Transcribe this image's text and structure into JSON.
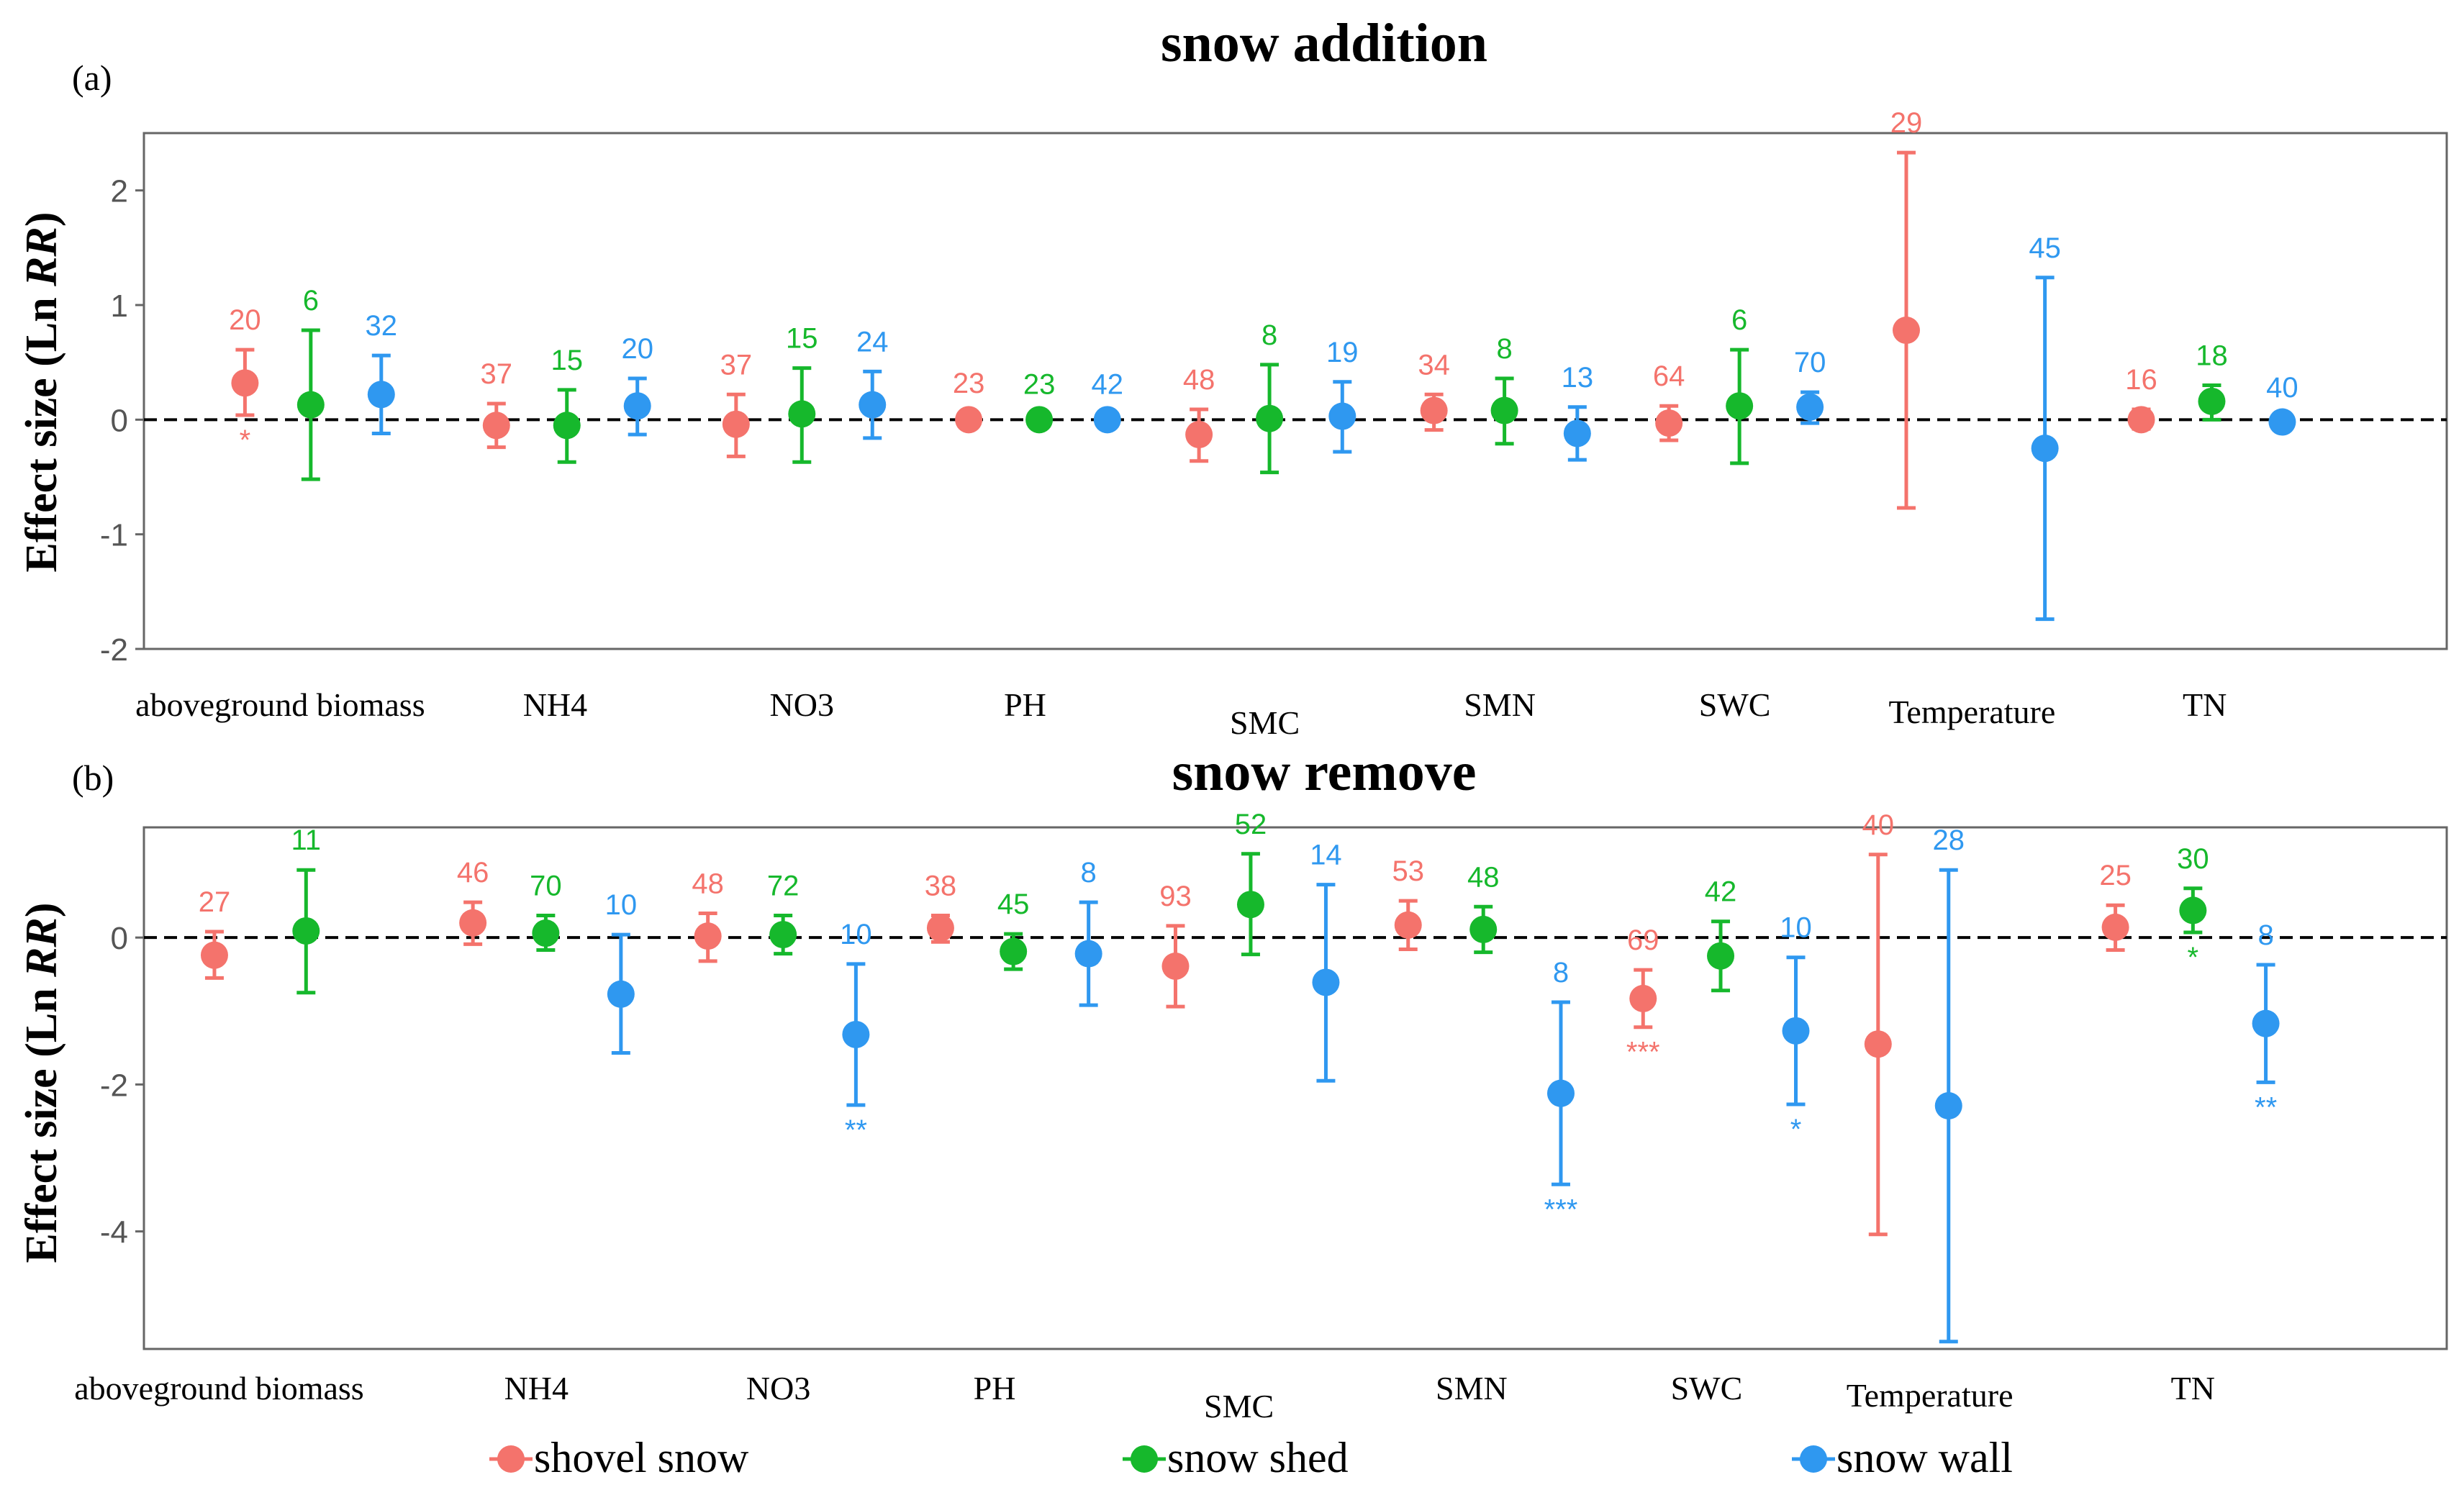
{
  "colors": {
    "shovel": "#f4736c",
    "shed": "#16b82c",
    "wall": "#2f98f0",
    "zero_line": "#000000",
    "axis": "#555555"
  },
  "legend": [
    {
      "key": "shovel",
      "label": "shovel snow"
    },
    {
      "key": "shed",
      "label": "snow shed"
    },
    {
      "key": "wall",
      "label": "snow wall"
    }
  ],
  "chart_data": [
    {
      "type": "scatter",
      "panel_label": "(a)",
      "title": "snow addition",
      "ylabel": "Effect size (Ln RR)",
      "ylim": [
        -2,
        2.5
      ],
      "yticks": [
        -2,
        -1,
        0,
        1,
        2
      ],
      "categories": [
        "aboveground biomass",
        "NH4",
        "NO3",
        "PH",
        "SMC",
        "SMN",
        "SWC",
        "Temperature",
        "TN"
      ],
      "series": [
        {
          "name": "shovel snow",
          "key": "shovel",
          "points": [
            {
              "cat": 0,
              "x": 0.73,
              "y": 0.32,
              "lo": 0.04,
              "hi": 0.61,
              "n": "20",
              "sig": "*"
            },
            {
              "cat": 1,
              "x": 1.8,
              "y": -0.05,
              "lo": -0.24,
              "hi": 0.14,
              "n": "37",
              "sig": ""
            },
            {
              "cat": 2,
              "x": 2.82,
              "y": -0.04,
              "lo": -0.32,
              "hi": 0.22,
              "n": "37",
              "sig": ""
            },
            {
              "cat": 3,
              "x": 3.81,
              "y": 0.0,
              "lo": -0.06,
              "hi": 0.06,
              "n": "23",
              "sig": ""
            },
            {
              "cat": 4,
              "x": 4.79,
              "y": -0.13,
              "lo": -0.36,
              "hi": 0.09,
              "n": "48",
              "sig": ""
            },
            {
              "cat": 5,
              "x": 5.79,
              "y": 0.08,
              "lo": -0.09,
              "hi": 0.22,
              "n": "34",
              "sig": ""
            },
            {
              "cat": 6,
              "x": 6.79,
              "y": -0.03,
              "lo": -0.18,
              "hi": 0.12,
              "n": "64",
              "sig": ""
            },
            {
              "cat": 7,
              "x": 7.8,
              "y": 0.78,
              "lo": -0.77,
              "hi": 2.33,
              "n": "29",
              "sig": ""
            },
            {
              "cat": 8,
              "x": 8.8,
              "y": 0.0,
              "lo": -0.08,
              "hi": 0.09,
              "n": "16",
              "sig": ""
            }
          ]
        },
        {
          "name": "snow shed",
          "key": "shed",
          "points": [
            {
              "cat": 0,
              "x": 1.01,
              "y": 0.13,
              "lo": -0.52,
              "hi": 0.78,
              "n": "6",
              "sig": ""
            },
            {
              "cat": 1,
              "x": 2.1,
              "y": -0.05,
              "lo": -0.37,
              "hi": 0.26,
              "n": "15",
              "sig": ""
            },
            {
              "cat": 2,
              "x": 3.1,
              "y": 0.05,
              "lo": -0.37,
              "hi": 0.45,
              "n": "15",
              "sig": ""
            },
            {
              "cat": 3,
              "x": 4.11,
              "y": 0.0,
              "lo": -0.05,
              "hi": 0.05,
              "n": "23",
              "sig": ""
            },
            {
              "cat": 4,
              "x": 5.09,
              "y": 0.01,
              "lo": -0.46,
              "hi": 0.48,
              "n": "8",
              "sig": ""
            },
            {
              "cat": 5,
              "x": 6.09,
              "y": 0.08,
              "lo": -0.21,
              "hi": 0.36,
              "n": "8",
              "sig": ""
            },
            {
              "cat": 6,
              "x": 7.09,
              "y": 0.12,
              "lo": -0.38,
              "hi": 0.61,
              "n": "6",
              "sig": ""
            },
            {
              "cat": 8,
              "x": 9.1,
              "y": 0.16,
              "lo": 0.0,
              "hi": 0.3,
              "n": "18",
              "sig": ""
            }
          ]
        },
        {
          "name": "snow wall",
          "key": "wall",
          "points": [
            {
              "cat": 0,
              "x": 1.31,
              "y": 0.22,
              "lo": -0.12,
              "hi": 0.56,
              "n": "32",
              "sig": ""
            },
            {
              "cat": 1,
              "x": 2.4,
              "y": 0.12,
              "lo": -0.13,
              "hi": 0.36,
              "n": "20",
              "sig": ""
            },
            {
              "cat": 2,
              "x": 3.4,
              "y": 0.13,
              "lo": -0.16,
              "hi": 0.42,
              "n": "24",
              "sig": ""
            },
            {
              "cat": 3,
              "x": 4.4,
              "y": 0.0,
              "lo": -0.05,
              "hi": 0.05,
              "n": "42",
              "sig": ""
            },
            {
              "cat": 4,
              "x": 5.4,
              "y": 0.03,
              "lo": -0.28,
              "hi": 0.33,
              "n": "19",
              "sig": ""
            },
            {
              "cat": 5,
              "x": 6.4,
              "y": -0.12,
              "lo": -0.35,
              "hi": 0.11,
              "n": "13",
              "sig": ""
            },
            {
              "cat": 6,
              "x": 7.39,
              "y": 0.11,
              "lo": -0.03,
              "hi": 0.24,
              "n": "70",
              "sig": ""
            },
            {
              "cat": 7,
              "x": 8.39,
              "y": -0.25,
              "lo": -1.74,
              "hi": 1.24,
              "n": "45",
              "sig": ""
            },
            {
              "cat": 8,
              "x": 9.4,
              "y": -0.02,
              "lo": -0.05,
              "hi": 0.02,
              "n": "40",
              "sig": ""
            }
          ]
        }
      ]
    },
    {
      "type": "scatter",
      "panel_label": "(b)",
      "title": "snow remove",
      "ylabel": "Effect size (Ln RR)",
      "ylim": [
        -5.6,
        1.5
      ],
      "yticks": [
        -4,
        -2,
        0
      ],
      "categories": [
        "aboveground biomass",
        "NH4",
        "NO3",
        "PH",
        "SMC",
        "SMN",
        "SWC",
        "Temperature",
        "TN"
      ],
      "series": [
        {
          "name": "shovel snow",
          "key": "shovel",
          "points": [
            {
              "cat": 0,
              "x": 0.6,
              "y": -0.24,
              "lo": -0.55,
              "hi": 0.08,
              "n": "27",
              "sig": ""
            },
            {
              "cat": 1,
              "x": 1.7,
              "y": 0.2,
              "lo": -0.09,
              "hi": 0.48,
              "n": "46",
              "sig": ""
            },
            {
              "cat": 2,
              "x": 2.7,
              "y": 0.02,
              "lo": -0.32,
              "hi": 0.33,
              "n": "48",
              "sig": ""
            },
            {
              "cat": 3,
              "x": 3.69,
              "y": 0.13,
              "lo": -0.06,
              "hi": 0.3,
              "n": "38",
              "sig": ""
            },
            {
              "cat": 4,
              "x": 4.69,
              "y": -0.39,
              "lo": -0.94,
              "hi": 0.16,
              "n": "93",
              "sig": ""
            },
            {
              "cat": 5,
              "x": 5.68,
              "y": 0.17,
              "lo": -0.16,
              "hi": 0.5,
              "n": "53",
              "sig": ""
            },
            {
              "cat": 6,
              "x": 6.68,
              "y": -0.83,
              "lo": -1.22,
              "hi": -0.44,
              "n": "69",
              "sig": "***"
            },
            {
              "cat": 7,
              "x": 7.68,
              "y": -1.45,
              "lo": -4.04,
              "hi": 1.13,
              "n": "40",
              "sig": ""
            },
            {
              "cat": 8,
              "x": 8.69,
              "y": 0.14,
              "lo": -0.17,
              "hi": 0.44,
              "n": "25",
              "sig": ""
            }
          ]
        },
        {
          "name": "snow shed",
          "key": "shed",
          "points": [
            {
              "cat": 0,
              "x": 0.99,
              "y": 0.09,
              "lo": -0.75,
              "hi": 0.92,
              "n": "11",
              "sig": ""
            },
            {
              "cat": 1,
              "x": 2.01,
              "y": 0.06,
              "lo": -0.17,
              "hi": 0.3,
              "n": "70",
              "sig": ""
            },
            {
              "cat": 2,
              "x": 3.02,
              "y": 0.04,
              "lo": -0.22,
              "hi": 0.3,
              "n": "72",
              "sig": ""
            },
            {
              "cat": 3,
              "x": 4.0,
              "y": -0.19,
              "lo": -0.43,
              "hi": 0.05,
              "n": "45",
              "sig": ""
            },
            {
              "cat": 4,
              "x": 5.01,
              "y": 0.45,
              "lo": -0.23,
              "hi": 1.14,
              "n": "52",
              "sig": ""
            },
            {
              "cat": 5,
              "x": 6.0,
              "y": 0.11,
              "lo": -0.2,
              "hi": 0.42,
              "n": "48",
              "sig": ""
            },
            {
              "cat": 6,
              "x": 7.01,
              "y": -0.25,
              "lo": -0.72,
              "hi": 0.22,
              "n": "42",
              "sig": ""
            },
            {
              "cat": 8,
              "x": 9.02,
              "y": 0.37,
              "lo": 0.07,
              "hi": 0.67,
              "n": "30",
              "sig": "*"
            }
          ]
        },
        {
          "name": "snow wall",
          "key": "wall",
          "points": [
            {
              "cat": 1,
              "x": 2.33,
              "y": -0.77,
              "lo": -1.57,
              "hi": 0.04,
              "n": "10",
              "sig": ""
            },
            {
              "cat": 2,
              "x": 3.33,
              "y": -1.32,
              "lo": -2.28,
              "hi": -0.36,
              "n": "10",
              "sig": "**"
            },
            {
              "cat": 3,
              "x": 4.32,
              "y": -0.22,
              "lo": -0.92,
              "hi": 0.48,
              "n": "8",
              "sig": ""
            },
            {
              "cat": 4,
              "x": 5.33,
              "y": -0.61,
              "lo": -1.95,
              "hi": 0.72,
              "n": "14",
              "sig": ""
            },
            {
              "cat": 5,
              "x": 6.33,
              "y": -2.12,
              "lo": -3.36,
              "hi": -0.88,
              "n": "8",
              "sig": "***"
            },
            {
              "cat": 6,
              "x": 7.33,
              "y": -1.27,
              "lo": -2.27,
              "hi": -0.27,
              "n": "10",
              "sig": "*"
            },
            {
              "cat": 7,
              "x": 7.98,
              "y": -2.29,
              "lo": -5.5,
              "hi": 0.92,
              "n": "28",
              "sig": ""
            },
            {
              "cat": 8,
              "x": 9.33,
              "y": -1.17,
              "lo": -1.97,
              "hi": -0.37,
              "n": "8",
              "sig": "**"
            }
          ]
        }
      ]
    }
  ]
}
